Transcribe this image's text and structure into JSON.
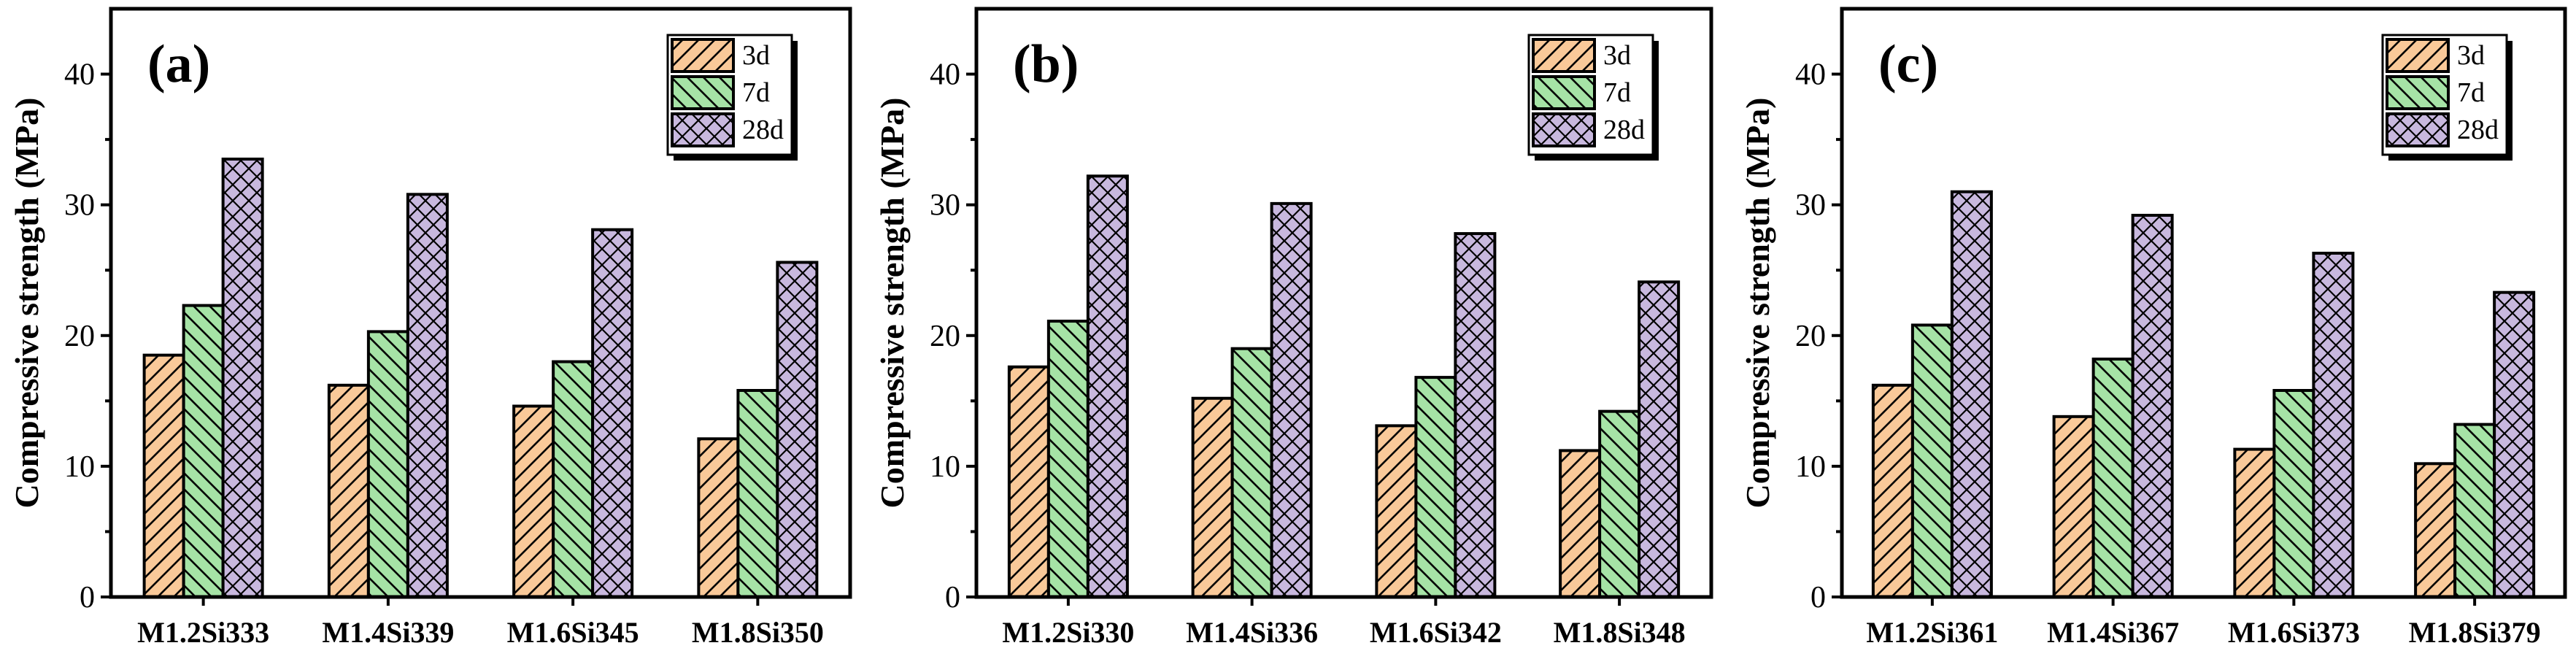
{
  "chart_data": [
    {
      "type": "bar",
      "panel_label": "(a)",
      "ylabel": "Compressive strength (MPa)",
      "ylim": [
        0,
        45
      ],
      "yticks": [
        0,
        10,
        20,
        30,
        40
      ],
      "categories": [
        "M1.2Si333",
        "M1.4Si339",
        "M1.6Si345",
        "M1.8Si350"
      ],
      "series": [
        {
          "name": "3d",
          "values": [
            18.5,
            16.2,
            14.6,
            12.1
          ]
        },
        {
          "name": "7d",
          "values": [
            22.3,
            20.3,
            18.0,
            15.8
          ]
        },
        {
          "name": "28d",
          "values": [
            33.5,
            30.8,
            28.1,
            25.6
          ]
        }
      ],
      "legend_position": "top-right"
    },
    {
      "type": "bar",
      "panel_label": "(b)",
      "ylabel": "Compressive strength (MPa)",
      "ylim": [
        0,
        45
      ],
      "yticks": [
        0,
        10,
        20,
        30,
        40
      ],
      "categories": [
        "M1.2Si330",
        "M1.4Si336",
        "M1.6Si342",
        "M1.8Si348"
      ],
      "series": [
        {
          "name": "3d",
          "values": [
            17.6,
            15.2,
            13.1,
            11.2
          ]
        },
        {
          "name": "7d",
          "values": [
            21.1,
            19.0,
            16.8,
            14.2
          ]
        },
        {
          "name": "28d",
          "values": [
            32.2,
            30.1,
            27.8,
            24.1
          ]
        }
      ],
      "legend_position": "top-right"
    },
    {
      "type": "bar",
      "panel_label": "(c)",
      "ylabel": "Compressive strength (MPa)",
      "ylim": [
        0,
        45
      ],
      "yticks": [
        0,
        10,
        20,
        30,
        40
      ],
      "categories": [
        "M1.2Si361",
        "M1.4Si367",
        "M1.6Si373",
        "M1.8Si379"
      ],
      "series": [
        {
          "name": "3d",
          "values": [
            16.2,
            13.8,
            11.3,
            10.2
          ]
        },
        {
          "name": "7d",
          "values": [
            20.8,
            18.2,
            15.8,
            13.2
          ]
        },
        {
          "name": "28d",
          "values": [
            31.0,
            29.2,
            26.3,
            23.3
          ]
        }
      ],
      "legend_position": "top-right"
    }
  ],
  "colors": {
    "3d": "#f9c999",
    "7d": "#a6e3a6",
    "28d": "#c8b8de"
  }
}
